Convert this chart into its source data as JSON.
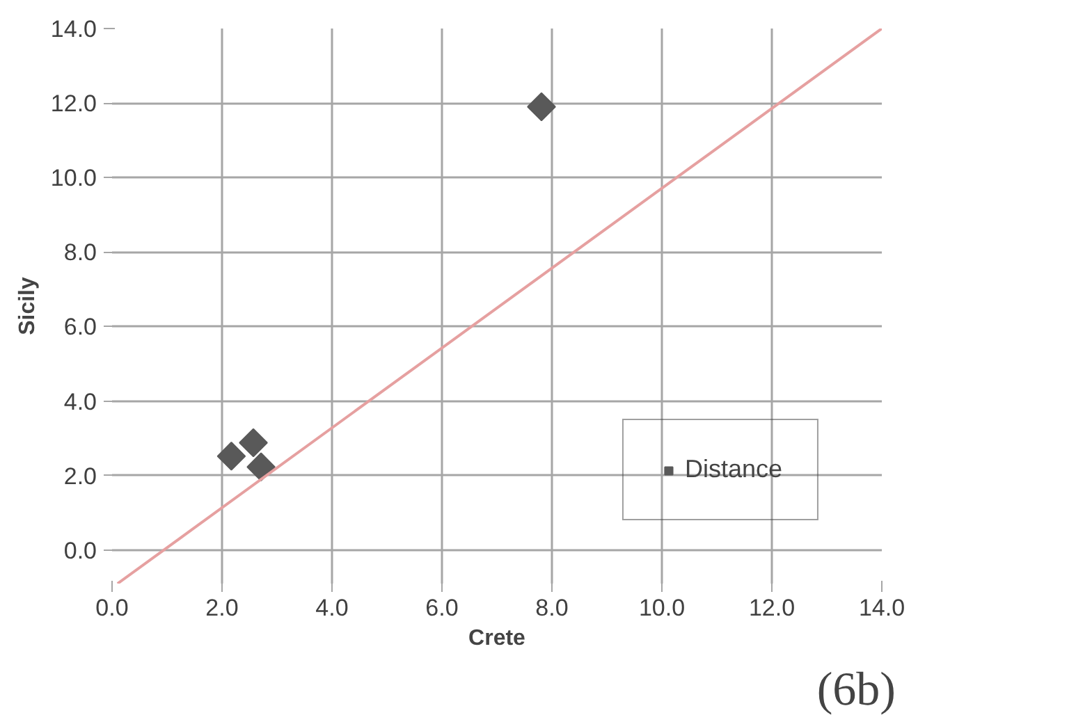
{
  "chart_data": {
    "type": "scatter",
    "xlabel": "Crete",
    "ylabel": "Sicily",
    "xlim": [
      0,
      14
    ],
    "ylim": [
      -0.9,
      14
    ],
    "xticks": [
      {
        "value": 0,
        "label": "0.0"
      },
      {
        "value": 2,
        "label": "2.0"
      },
      {
        "value": 4,
        "label": "4.0"
      },
      {
        "value": 6,
        "label": "6.0"
      },
      {
        "value": 8,
        "label": "8.0"
      },
      {
        "value": 10,
        "label": "10.0"
      },
      {
        "value": 12,
        "label": "12.0"
      },
      {
        "value": 14,
        "label": "14.0"
      }
    ],
    "yticks": [
      {
        "value": 0,
        "label": "0.0"
      },
      {
        "value": 2,
        "label": "2.0"
      },
      {
        "value": 4,
        "label": "4.0"
      },
      {
        "value": 6,
        "label": "6.0"
      },
      {
        "value": 8,
        "label": "8.0"
      },
      {
        "value": 10,
        "label": "10.0"
      },
      {
        "value": 12,
        "label": "12.0"
      },
      {
        "value": 14,
        "label": "14.0"
      }
    ],
    "grid": true,
    "legend": "bottom right",
    "series": [
      {
        "name": "Distance",
        "color": "#595959",
        "marker": "diamond",
        "x": [
          2.17,
          2.57,
          2.71,
          7.81
        ],
        "values": [
          2.52,
          2.88,
          2.23,
          11.9
        ]
      },
      {
        "type": "line",
        "marker": "none",
        "color": "#e6a0a0",
        "x": [
          0.1,
          14
        ],
        "values": [
          -0.9,
          14
        ]
      }
    ],
    "annotations": [
      "(6b)"
    ]
  }
}
